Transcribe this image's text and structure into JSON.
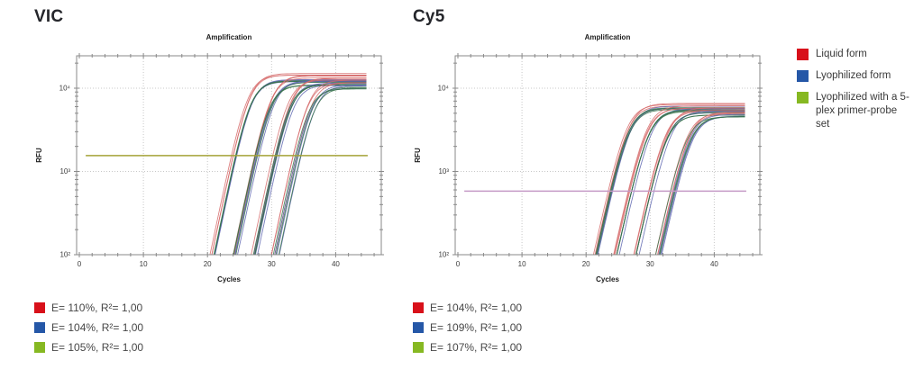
{
  "page": {
    "background": "#ffffff"
  },
  "legend": {
    "items": [
      {
        "label": "Liquid form",
        "color": "#d8101a"
      },
      {
        "label": "Lyophilized form",
        "color": "#2557a7"
      },
      {
        "label": "Lyophilized with a 5-plex primer-probe set",
        "color": "#86b822"
      }
    ]
  },
  "chart_data": [
    {
      "id": "vic",
      "panel_title": "VIC",
      "type": "line",
      "title": "Amplification",
      "xlabel": "Cycles",
      "ylabel": "RFU",
      "x_ticks": [
        0,
        10,
        20,
        30,
        40
      ],
      "x_tick_labels": [
        "0",
        "10",
        "20",
        "30",
        "40"
      ],
      "x_minor_step": 2,
      "xlim": [
        0,
        47
      ],
      "x_data_end": 45,
      "y_scale": "log",
      "y_decades": [
        100,
        1000,
        10000
      ],
      "y_tick_labels": [
        "10²",
        "10³",
        "10⁴"
      ],
      "ylim": [
        100,
        24000
      ],
      "grid": "dotted",
      "threshold": {
        "value": 1550,
        "color": "#a4a338",
        "x_start": 1,
        "x_end": 45
      },
      "slope_k": 0.85,
      "replicates": 3,
      "group_spread": [
        0.4,
        0.5,
        0.7,
        1.2
      ],
      "series": [
        {
          "name": "Liquid form",
          "color": "#d66b6b",
          "ct_offset": -0.3,
          "plateau_scale": 1.13
        },
        {
          "name": "Lyophilized form",
          "color": "#5e66b0",
          "ct_offset": 0.25,
          "plateau_scale": 0.97
        },
        {
          "name": "Lyophilized with a 5-plex primer-probe set",
          "color": "#37734a",
          "ct_offset": 0.05,
          "plateau_scale": 0.93
        }
      ],
      "groups": [
        {
          "ct": 24.2,
          "plateau": 12800
        },
        {
          "ct": 27.6,
          "plateau": 12200
        },
        {
          "ct": 30.7,
          "plateau": 11400
        },
        {
          "ct": 34.2,
          "plateau": 10800
        }
      ],
      "stats": [
        {
          "color": "#d8101a",
          "label": "E= 110%, R²= 1,00"
        },
        {
          "color": "#2557a7",
          "label": "E= 104%, R²= 1,00"
        },
        {
          "color": "#86b822",
          "label": "E= 105%, R²= 1,00"
        }
      ]
    },
    {
      "id": "cy5",
      "panel_title": "Cy5",
      "type": "line",
      "title": "Amplification",
      "xlabel": "Cycles",
      "ylabel": "RFU",
      "x_ticks": [
        0,
        10,
        20,
        30,
        40
      ],
      "x_tick_labels": [
        "0",
        "10",
        "20",
        "30",
        "40"
      ],
      "x_minor_step": 2,
      "xlim": [
        0,
        47
      ],
      "x_data_end": 45,
      "y_scale": "log",
      "y_decades": [
        100,
        1000,
        10000
      ],
      "y_tick_labels": [
        "10²",
        "10³",
        "10⁴"
      ],
      "ylim": [
        100,
        24000
      ],
      "grid": "dotted",
      "threshold": {
        "value": 580,
        "color": "#c59ac6",
        "x_start": 1,
        "x_end": 45
      },
      "slope_k": 0.8,
      "replicates": 3,
      "group_spread": [
        0.4,
        0.5,
        0.6,
        0.9
      ],
      "series": [
        {
          "name": "Liquid form",
          "color": "#d66b6b",
          "ct_offset": -0.3,
          "plateau_scale": 1.07
        },
        {
          "name": "Lyophilized form",
          "color": "#5e66b0",
          "ct_offset": 0.2,
          "plateau_scale": 0.99
        },
        {
          "name": "Lyophilized with a 5-plex primer-probe set",
          "color": "#37734a",
          "ct_offset": 0.0,
          "plateau_scale": 0.96
        }
      ],
      "groups": [
        {
          "ct": 23.9,
          "plateau": 6000
        },
        {
          "ct": 27.1,
          "plateau": 5600
        },
        {
          "ct": 30.2,
          "plateau": 5200
        },
        {
          "ct": 33.5,
          "plateau": 4700
        }
      ],
      "stats": [
        {
          "color": "#d8101a",
          "label": "E= 104%, R²= 1,00"
        },
        {
          "color": "#2557a7",
          "label": "E= 109%, R²= 1,00"
        },
        {
          "color": "#86b822",
          "label": "E= 107%, R²= 1,00"
        }
      ]
    }
  ]
}
